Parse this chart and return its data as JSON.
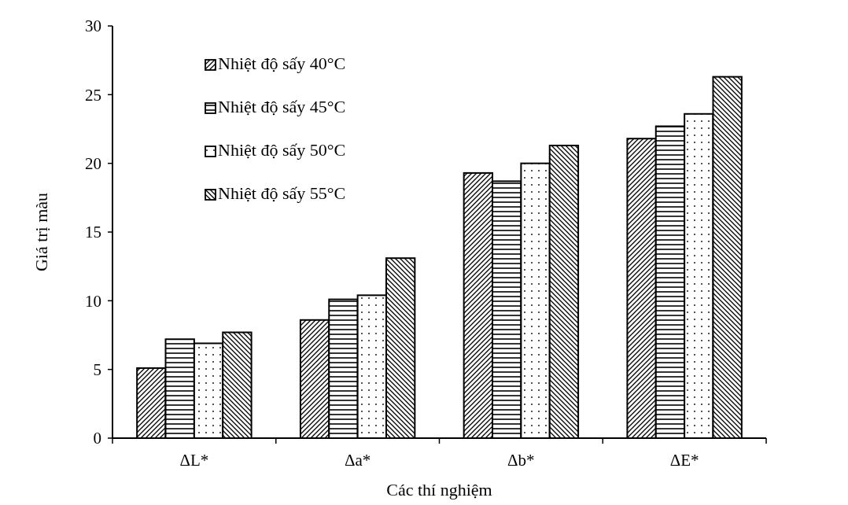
{
  "chart_data": {
    "type": "bar",
    "xlabel": "Các thí nghiệm",
    "ylabel": "Giá trị màu",
    "categories": [
      "ΔL*",
      "Δa*",
      "Δb*",
      "ΔE*"
    ],
    "series": [
      {
        "name": "Nhiệt độ sấy 40°C",
        "color": "#000000",
        "values": [
          5.1,
          8.6,
          19.3,
          21.8
        ]
      },
      {
        "name": "Nhiệt độ sấy 45°C",
        "color": "#000000",
        "values": [
          7.2,
          10.1,
          18.7,
          22.7
        ]
      },
      {
        "name": "Nhiệt độ sấy 50°C",
        "color": "#000000",
        "values": [
          6.9,
          10.4,
          20.0,
          23.6
        ]
      },
      {
        "name": "Nhiệt độ sấy 55°C",
        "color": "#000000",
        "values": [
          7.7,
          13.1,
          21.3,
          26.3
        ]
      }
    ],
    "ylim": [
      0,
      30
    ],
    "yticks": [
      0,
      5,
      10,
      15,
      20,
      25,
      30
    ],
    "legend": "top left"
  }
}
